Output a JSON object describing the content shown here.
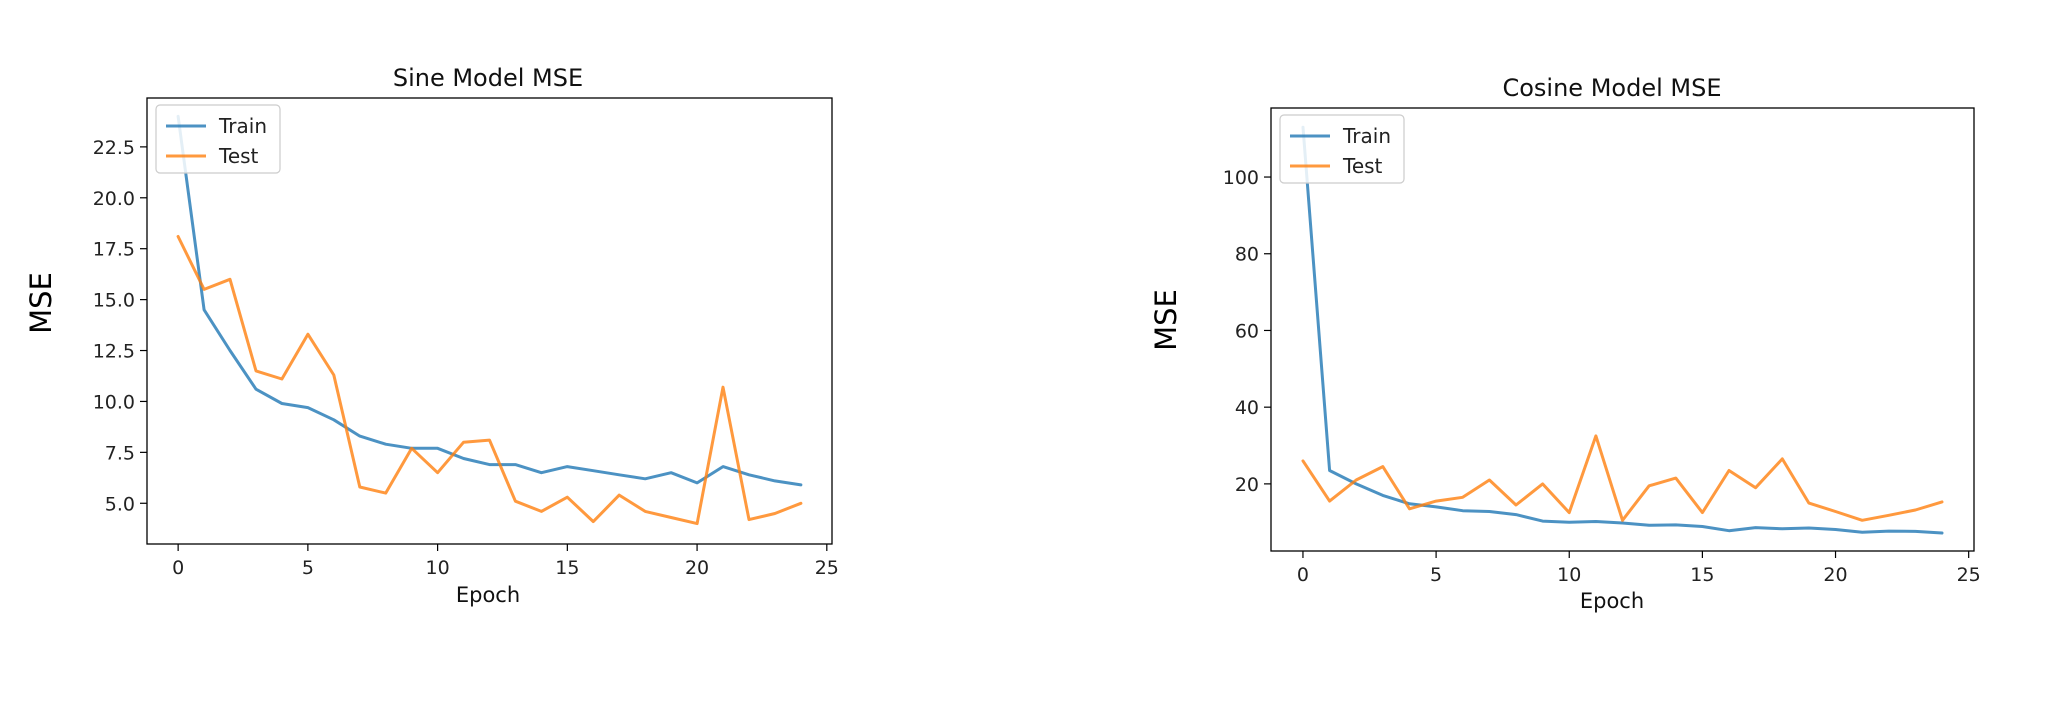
{
  "chart_data": [
    {
      "type": "line",
      "title": "Sine Model MSE",
      "xlabel": "Epoch",
      "ylabel": "MSE",
      "xlim": [
        -1.2,
        25.2
      ],
      "ylim": [
        3.0,
        24.9
      ],
      "xticks": [
        0,
        5,
        10,
        15,
        20,
        25
      ],
      "xtick_labels": [
        "0",
        "5",
        "10",
        "15",
        "20",
        "25"
      ],
      "yticks": [
        5.0,
        7.5,
        10.0,
        12.5,
        15.0,
        17.5,
        20.0,
        22.5
      ],
      "ytick_labels": [
        "5.0",
        "7.5",
        "10.0",
        "12.5",
        "15.0",
        "17.5",
        "20.0",
        "22.5"
      ],
      "grid": false,
      "legend_position": "top-left",
      "x": [
        0,
        1,
        2,
        3,
        4,
        5,
        6,
        7,
        8,
        9,
        10,
        11,
        12,
        13,
        14,
        15,
        16,
        17,
        18,
        19,
        20,
        21,
        22,
        23,
        24
      ],
      "series": [
        {
          "name": "Train",
          "color": "#1f77b4",
          "values": [
            24.0,
            14.5,
            12.5,
            10.6,
            9.9,
            9.7,
            9.1,
            8.3,
            7.9,
            7.7,
            7.7,
            7.2,
            6.9,
            6.9,
            6.5,
            6.8,
            6.6,
            6.4,
            6.2,
            6.5,
            6.0,
            6.8,
            6.4,
            6.1,
            5.9
          ]
        },
        {
          "name": "Test",
          "color": "#ff7f0e",
          "values": [
            18.1,
            15.5,
            16.0,
            11.5,
            11.1,
            13.3,
            11.3,
            5.8,
            5.5,
            7.7,
            6.5,
            8.0,
            8.1,
            5.1,
            4.6,
            5.3,
            4.1,
            5.4,
            4.6,
            4.3,
            4.0,
            10.7,
            4.2,
            4.5,
            5.0
          ]
        }
      ]
    },
    {
      "type": "line",
      "title": "Cosine Model MSE",
      "xlabel": "Epoch",
      "ylabel": "MSE",
      "xlim": [
        -1.2,
        25.2
      ],
      "ylim": [
        2.5,
        118.0
      ],
      "xticks": [
        0,
        5,
        10,
        15,
        20,
        25
      ],
      "xtick_labels": [
        "0",
        "5",
        "10",
        "15",
        "20",
        "25"
      ],
      "yticks": [
        20,
        40,
        60,
        80,
        100
      ],
      "ytick_labels": [
        "20",
        "40",
        "60",
        "80",
        "100"
      ],
      "grid": false,
      "legend_position": "top-left",
      "x": [
        0,
        1,
        2,
        3,
        4,
        5,
        6,
        7,
        8,
        9,
        10,
        11,
        12,
        13,
        14,
        15,
        16,
        17,
        18,
        19,
        20,
        21,
        22,
        23,
        24
      ],
      "series": [
        {
          "name": "Train",
          "color": "#1f77b4",
          "values": [
            113.0,
            23.5,
            20.0,
            17.0,
            14.8,
            14.0,
            13.0,
            12.8,
            12.0,
            10.3,
            10.0,
            10.2,
            9.8,
            9.2,
            9.3,
            8.9,
            7.8,
            8.6,
            8.3,
            8.5,
            8.1,
            7.4,
            7.7,
            7.6,
            7.2
          ]
        },
        {
          "name": "Test",
          "color": "#ff7f0e",
          "values": [
            26.0,
            15.5,
            21.0,
            24.5,
            13.5,
            15.5,
            16.5,
            21.0,
            14.5,
            20.0,
            12.5,
            32.5,
            10.5,
            19.5,
            21.5,
            12.5,
            23.5,
            19.0,
            26.5,
            15.0,
            12.8,
            10.5,
            11.8,
            13.2,
            15.3
          ]
        }
      ]
    }
  ]
}
